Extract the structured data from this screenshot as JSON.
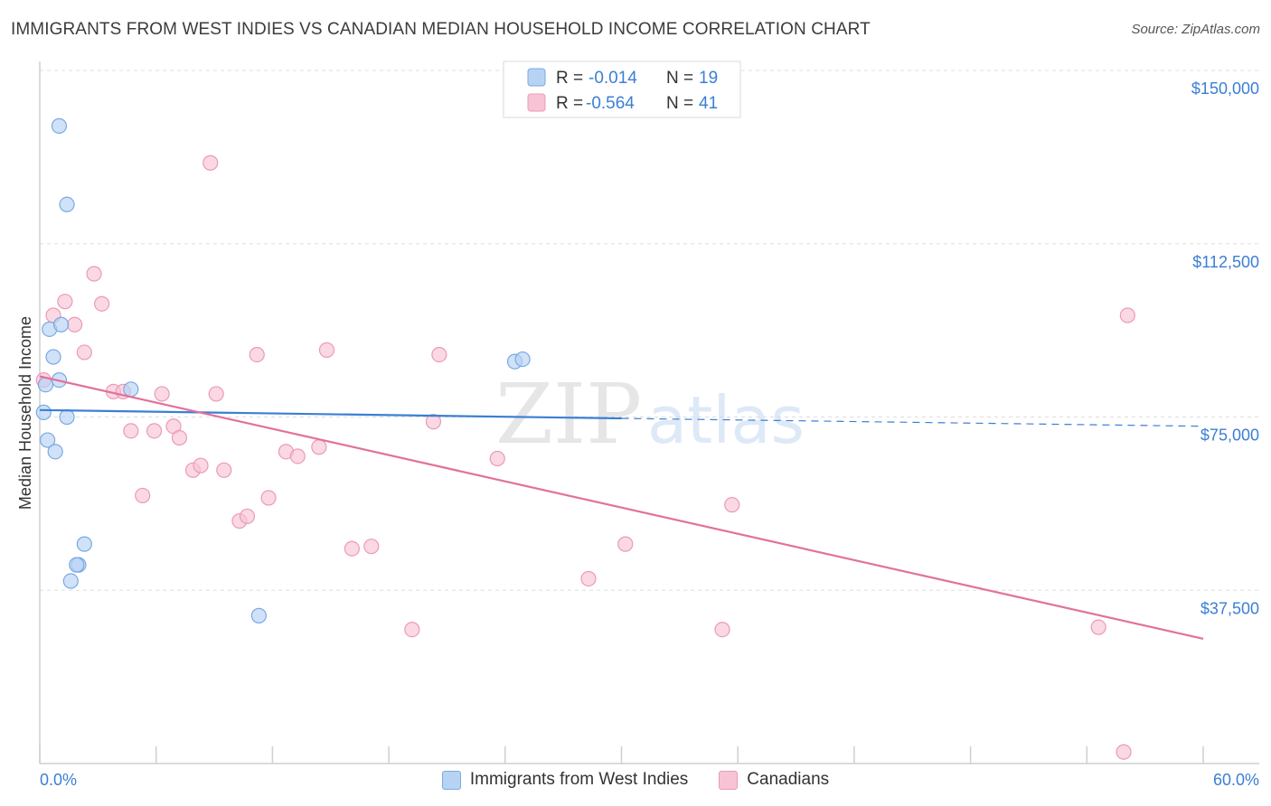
{
  "header": {
    "title": "IMMIGRANTS FROM WEST INDIES VS CANADIAN MEDIAN HOUSEHOLD INCOME CORRELATION CHART",
    "source": "Source: ZipAtlas.com"
  },
  "watermark": {
    "part1": "ZIP",
    "part2": "atlas"
  },
  "colors": {
    "blue_fill": "#b7d3f4",
    "blue_stroke": "#7aa9e3",
    "blue_line": "#3b7fd4",
    "pink_fill": "#f8c3d5",
    "pink_stroke": "#ec9ab6",
    "pink_line": "#e2719c",
    "axis_label": "#3b7fd4"
  },
  "legend": {
    "r_label": "R =",
    "n_label": "N =",
    "items": [
      {
        "r": "-0.014",
        "n": "19"
      },
      {
        "r": "-0.564",
        "n": "41"
      }
    ]
  },
  "chart_data": {
    "type": "scatter",
    "title": "IMMIGRANTS FROM WEST INDIES VS CANADIAN MEDIAN HOUSEHOLD INCOME CORRELATION CHART",
    "xlabel": "",
    "ylabel": "Median Household Income",
    "xlim": [
      0,
      60
    ],
    "ylim": [
      0,
      155000
    ],
    "x_tick_labels": [
      "0.0%",
      "60.0%"
    ],
    "y_ticks": [
      37500,
      75000,
      112500,
      150000
    ],
    "y_tick_labels": [
      "$37,500",
      "$75,000",
      "$112,500",
      "$150,000"
    ],
    "grid": true,
    "series": [
      {
        "name": "Immigrants from West Indies",
        "points": [
          [
            1.0,
            138000
          ],
          [
            1.4,
            121000
          ],
          [
            0.5,
            94000
          ],
          [
            1.1,
            95000
          ],
          [
            0.7,
            88000
          ],
          [
            1.0,
            83000
          ],
          [
            0.3,
            82000
          ],
          [
            4.7,
            81000
          ],
          [
            0.2,
            76000
          ],
          [
            1.4,
            75000
          ],
          [
            0.4,
            70000
          ],
          [
            0.8,
            67500
          ],
          [
            2.3,
            47500
          ],
          [
            2.0,
            43000
          ],
          [
            1.9,
            43000
          ],
          [
            1.6,
            39500
          ],
          [
            11.3,
            32000
          ],
          [
            24.5,
            87000
          ],
          [
            24.9,
            87500
          ]
        ],
        "trend": {
          "x": [
            0,
            30
          ],
          "y": [
            76500,
            74700
          ]
        },
        "trend_extension": {
          "x": [
            30,
            60
          ],
          "y": [
            74700,
            73000
          ]
        }
      },
      {
        "name": "Canadians",
        "points": [
          [
            0.2,
            83000
          ],
          [
            0.7,
            97000
          ],
          [
            1.3,
            100000
          ],
          [
            1.8,
            95000
          ],
          [
            2.3,
            89000
          ],
          [
            2.8,
            106000
          ],
          [
            3.2,
            99500
          ],
          [
            3.8,
            80500
          ],
          [
            4.3,
            80500
          ],
          [
            4.7,
            72000
          ],
          [
            5.3,
            58000
          ],
          [
            5.9,
            72000
          ],
          [
            6.3,
            80000
          ],
          [
            6.9,
            73000
          ],
          [
            7.2,
            70500
          ],
          [
            7.9,
            63500
          ],
          [
            8.3,
            64500
          ],
          [
            8.8,
            130000
          ],
          [
            9.1,
            80000
          ],
          [
            9.5,
            63500
          ],
          [
            10.3,
            52500
          ],
          [
            10.7,
            53500
          ],
          [
            11.2,
            88500
          ],
          [
            11.8,
            57500
          ],
          [
            12.7,
            67500
          ],
          [
            13.3,
            66500
          ],
          [
            14.4,
            68500
          ],
          [
            14.8,
            89500
          ],
          [
            16.1,
            46500
          ],
          [
            17.1,
            47000
          ],
          [
            19.2,
            29000
          ],
          [
            20.3,
            74000
          ],
          [
            20.6,
            88500
          ],
          [
            23.6,
            66000
          ],
          [
            28.3,
            40000
          ],
          [
            30.2,
            47500
          ],
          [
            35.2,
            29000
          ],
          [
            35.7,
            56000
          ],
          [
            54.6,
            29500
          ],
          [
            56.1,
            97000
          ],
          [
            55.9,
            2500
          ]
        ],
        "trend": {
          "x": [
            0,
            60
          ],
          "y": [
            83800,
            27000
          ]
        }
      }
    ]
  },
  "legend_bottom": {
    "items": [
      {
        "label": "Immigrants from West Indies"
      },
      {
        "label": "Canadians"
      }
    ]
  }
}
